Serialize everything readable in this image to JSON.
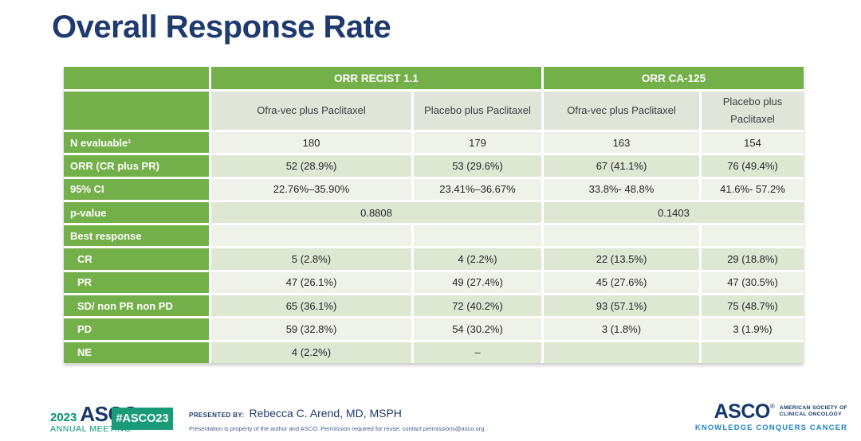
{
  "title": "Overall Response Rate",
  "colors": {
    "table_green": "#74b04a",
    "row_light": "#eef2e8",
    "row_dark": "#dde7d2",
    "subheader_bg": "#dfe5d8",
    "title_navy": "#1e3a6e",
    "badge_green": "#1a9b77",
    "logo_navy": "#16366b",
    "logo_teal": "#009374",
    "tagline_blue": "#2186c8"
  },
  "chart_data": {
    "type": "table",
    "title": "Overall Response Rate",
    "group_headers": [
      "ORR RECIST 1.1",
      "ORR CA-125"
    ],
    "col_headers": [
      "Ofra-vec plus Paclitaxel",
      "Placebo plus Paclitaxel",
      "Ofra-vec plus Paclitaxel",
      "Placebo plus Paclitaxel"
    ],
    "rows": [
      {
        "label": "N evaluable¹",
        "cells": [
          "180",
          "179",
          "163",
          "154"
        ]
      },
      {
        "label": "ORR (CR plus PR)",
        "cells": [
          "52 (28.9%)",
          "53 (29.6%)",
          "67 (41.1%)",
          "76 (49.4%)"
        ]
      },
      {
        "label": "95% CI",
        "cells": [
          "22.76%–35.90%",
          "23.41%–36.67%",
          "33.8%- 48.8%",
          "41.6%- 57.2%"
        ]
      },
      {
        "label": "p-value",
        "span_cells": [
          "0.8808",
          "0.1403"
        ]
      },
      {
        "label": "Best response",
        "cells": [
          "",
          "",
          "",
          ""
        ]
      },
      {
        "label": "CR",
        "indent": true,
        "cells": [
          "5 (2.8%)",
          "4 (2.2%)",
          "22 (13.5%)",
          "29 (18.8%)"
        ]
      },
      {
        "label": "PR",
        "indent": true,
        "cells": [
          "47 (26.1%)",
          "49 (27.4%)",
          "45 (27.6%)",
          "47 (30.5%)"
        ]
      },
      {
        "label": "SD/ non PR non PD",
        "indent": true,
        "cells": [
          "65 (36.1%)",
          "72 (40.2%)",
          "93 (57.1%)",
          "75 (48.7%)"
        ]
      },
      {
        "label": "PD",
        "indent": true,
        "cells": [
          "59 (32.8%)",
          "54 (30.2%)",
          "3 (1.8%)",
          "3 (1.9%)"
        ]
      },
      {
        "label": "NE",
        "indent": true,
        "cells": [
          "4 (2.2%)",
          "–",
          "",
          ""
        ]
      }
    ]
  },
  "footer": {
    "meeting_logo": {
      "year": "2023",
      "name": "ASCO",
      "reg": "®",
      "sub": "ANNUAL MEETING"
    },
    "hashtag": "#ASCO23",
    "presented_by_label": "PRESENTED BY:",
    "presenter": "Rebecca C. Arend, MD, MSPH",
    "disclaimer": "Presentation is property of the author and ASCO. Permission required for reuse; contact permissions@asco.org.",
    "asco_logo": {
      "name": "ASCO",
      "reg": "®",
      "society_line1": "AMERICAN SOCIETY OF",
      "society_line2": "CLINICAL ONCOLOGY",
      "tagline": "KNOWLEDGE CONQUERS CANCER"
    }
  }
}
